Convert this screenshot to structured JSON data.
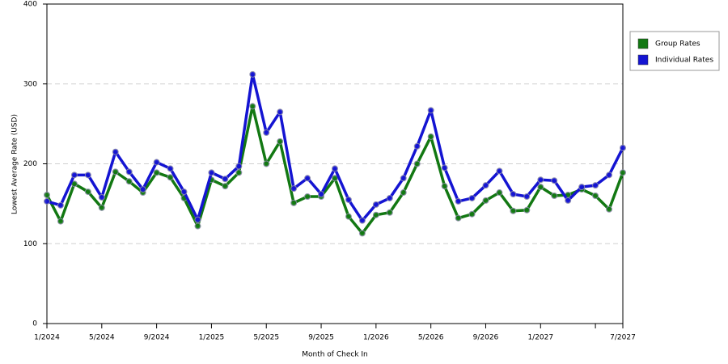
{
  "chart_data": {
    "type": "line",
    "x_label": "Month of Check In",
    "y_label": "Lowest Average Rate (USD)",
    "categories": [
      "1/2024",
      null,
      null,
      null,
      "5/2024",
      null,
      null,
      null,
      "9/2024",
      null,
      null,
      null,
      "1/2025",
      null,
      null,
      null,
      "5/2025",
      null,
      null,
      null,
      "9/2025",
      null,
      null,
      null,
      "1/2026",
      null,
      null,
      null,
      "5/2026",
      null,
      null,
      null,
      "9/2026",
      null,
      null,
      null,
      "1/2027",
      null,
      null,
      null,
      null,
      null,
      "7/2027"
    ],
    "series": [
      {
        "name": "Group Rates",
        "color": "#127812",
        "values": [
          161,
          128,
          175,
          165,
          145,
          190,
          178,
          164,
          189,
          183,
          157,
          122,
          180,
          172,
          189,
          272,
          200,
          228,
          151,
          159,
          159,
          182,
          134,
          113,
          136,
          139,
          164,
          200,
          234,
          172,
          132,
          137,
          154,
          164,
          141,
          142,
          171,
          160,
          161,
          168,
          160,
          143,
          189
        ]
      },
      {
        "name": "Individual Rates",
        "color": "#1414d2",
        "values": [
          153,
          148,
          186,
          186,
          158,
          215,
          190,
          168,
          202,
          194,
          165,
          130,
          189,
          181,
          197,
          312,
          239,
          265,
          169,
          182,
          162,
          194,
          155,
          129,
          149,
          157,
          182,
          222,
          267,
          195,
          153,
          157,
          173,
          191,
          162,
          159,
          180,
          179,
          154,
          171,
          173,
          186,
          220
        ]
      }
    ],
    "ylim": [
      0,
      400
    ],
    "yticks": [
      0,
      100,
      200,
      300,
      400
    ],
    "grid": true,
    "legend": "right"
  }
}
